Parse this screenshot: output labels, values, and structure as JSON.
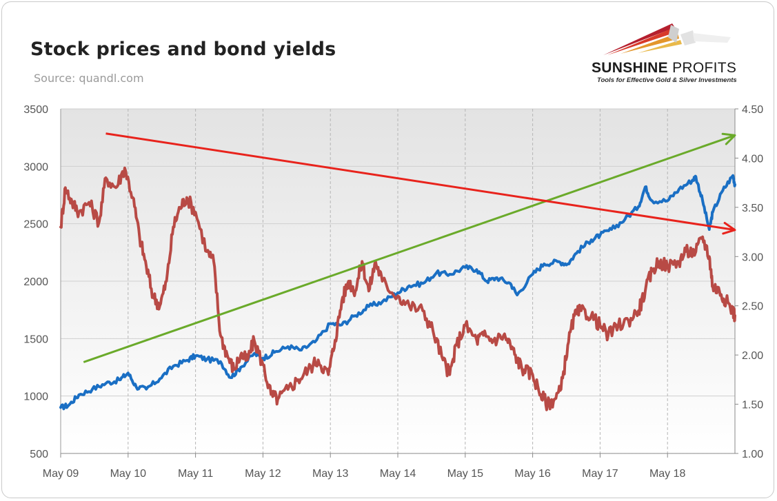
{
  "header": {
    "title": "Stock prices and bond yields",
    "source": "Source: quandl.com"
  },
  "logo": {
    "brand_bold": "SUNSHINE",
    "brand_light": "PROFITS",
    "tagline": "Tools for Effective Gold & Silver Investments"
  },
  "colors": {
    "stock_line": "#1a6fc4",
    "yield_line": "#b84a45",
    "rising_trend": "#6aaa2a",
    "falling_trend": "#e8231c"
  },
  "chart_data": {
    "type": "line",
    "title": "Stock prices and bond yields",
    "x_ticks": [
      "May 09",
      "May 10",
      "May 11",
      "May 12",
      "May 13",
      "May 14",
      "May 15",
      "May 16",
      "May 17",
      "May 18"
    ],
    "x_range": [
      2009.33,
      2019.33
    ],
    "y_left": {
      "range": [
        500,
        3500
      ],
      "ticks": [
        500,
        1000,
        1500,
        2000,
        2500,
        3000,
        3500
      ]
    },
    "y_right": {
      "range": [
        1.0,
        4.5
      ],
      "ticks": [
        "1.00",
        "1.50",
        "2.00",
        "2.50",
        "3.00",
        "3.50",
        "4.00",
        "4.50"
      ]
    },
    "grid": true,
    "legend": "none",
    "series": [
      {
        "axis": "left",
        "color": "#1a6fc4",
        "points": [
          [
            2009.33,
            900
          ],
          [
            2009.45,
            920
          ],
          [
            2009.6,
            1010
          ],
          [
            2009.8,
            1060
          ],
          [
            2010.0,
            1110
          ],
          [
            2010.2,
            1140
          ],
          [
            2010.33,
            1200
          ],
          [
            2010.45,
            1080
          ],
          [
            2010.6,
            1060
          ],
          [
            2010.8,
            1150
          ],
          [
            2011.0,
            1260
          ],
          [
            2011.2,
            1310
          ],
          [
            2011.33,
            1350
          ],
          [
            2011.5,
            1320
          ],
          [
            2011.7,
            1300
          ],
          [
            2011.85,
            1160
          ],
          [
            2012.0,
            1250
          ],
          [
            2012.2,
            1370
          ],
          [
            2012.33,
            1330
          ],
          [
            2012.5,
            1380
          ],
          [
            2012.7,
            1430
          ],
          [
            2012.9,
            1400
          ],
          [
            2013.1,
            1470
          ],
          [
            2013.33,
            1630
          ],
          [
            2013.5,
            1620
          ],
          [
            2013.7,
            1700
          ],
          [
            2013.9,
            1780
          ],
          [
            2014.1,
            1820
          ],
          [
            2014.33,
            1900
          ],
          [
            2014.5,
            1960
          ],
          [
            2014.7,
            1980
          ],
          [
            2014.9,
            2070
          ],
          [
            2015.1,
            2060
          ],
          [
            2015.33,
            2120
          ],
          [
            2015.5,
            2100
          ],
          [
            2015.65,
            2000
          ],
          [
            2015.8,
            2030
          ],
          [
            2016.0,
            1980
          ],
          [
            2016.1,
            1880
          ],
          [
            2016.33,
            2060
          ],
          [
            2016.5,
            2150
          ],
          [
            2016.7,
            2170
          ],
          [
            2016.85,
            2150
          ],
          [
            2017.0,
            2260
          ],
          [
            2017.2,
            2360
          ],
          [
            2017.33,
            2400
          ],
          [
            2017.5,
            2450
          ],
          [
            2017.7,
            2540
          ],
          [
            2017.9,
            2650
          ],
          [
            2018.0,
            2820
          ],
          [
            2018.1,
            2700
          ],
          [
            2018.33,
            2700
          ],
          [
            2018.5,
            2800
          ],
          [
            2018.7,
            2880
          ],
          [
            2018.75,
            2910
          ],
          [
            2018.85,
            2700
          ],
          [
            2018.95,
            2450
          ],
          [
            2019.0,
            2600
          ],
          [
            2019.15,
            2790
          ],
          [
            2019.3,
            2920
          ],
          [
            2019.33,
            2840
          ]
        ]
      },
      {
        "axis": "right",
        "color": "#b84a45",
        "points": [
          [
            2009.33,
            3.3
          ],
          [
            2009.4,
            3.7
          ],
          [
            2009.5,
            3.55
          ],
          [
            2009.6,
            3.45
          ],
          [
            2009.75,
            3.55
          ],
          [
            2009.9,
            3.35
          ],
          [
            2010.0,
            3.8
          ],
          [
            2010.15,
            3.7
          ],
          [
            2010.28,
            3.9
          ],
          [
            2010.4,
            3.6
          ],
          [
            2010.5,
            3.2
          ],
          [
            2010.6,
            2.9
          ],
          [
            2010.7,
            2.6
          ],
          [
            2010.8,
            2.5
          ],
          [
            2010.9,
            2.75
          ],
          [
            2011.0,
            3.3
          ],
          [
            2011.1,
            3.5
          ],
          [
            2011.2,
            3.6
          ],
          [
            2011.33,
            3.45
          ],
          [
            2011.5,
            3.05
          ],
          [
            2011.6,
            2.95
          ],
          [
            2011.7,
            2.2
          ],
          [
            2011.8,
            2.0
          ],
          [
            2011.9,
            1.85
          ],
          [
            2012.0,
            2.0
          ],
          [
            2012.1,
            1.95
          ],
          [
            2012.2,
            2.15
          ],
          [
            2012.33,
            1.9
          ],
          [
            2012.45,
            1.6
          ],
          [
            2012.55,
            1.55
          ],
          [
            2012.7,
            1.65
          ],
          [
            2012.85,
            1.75
          ],
          [
            2013.0,
            1.85
          ],
          [
            2013.15,
            1.95
          ],
          [
            2013.3,
            1.8
          ],
          [
            2013.4,
            2.15
          ],
          [
            2013.5,
            2.55
          ],
          [
            2013.6,
            2.75
          ],
          [
            2013.7,
            2.65
          ],
          [
            2013.8,
            2.95
          ],
          [
            2013.9,
            2.65
          ],
          [
            2014.0,
            2.95
          ],
          [
            2014.1,
            2.75
          ],
          [
            2014.33,
            2.6
          ],
          [
            2014.5,
            2.5
          ],
          [
            2014.7,
            2.45
          ],
          [
            2014.85,
            2.25
          ],
          [
            2015.0,
            1.95
          ],
          [
            2015.1,
            1.8
          ],
          [
            2015.2,
            2.1
          ],
          [
            2015.33,
            2.3
          ],
          [
            2015.5,
            2.15
          ],
          [
            2015.6,
            2.2
          ],
          [
            2015.75,
            2.15
          ],
          [
            2015.9,
            2.2
          ],
          [
            2016.0,
            2.1
          ],
          [
            2016.1,
            1.95
          ],
          [
            2016.2,
            1.85
          ],
          [
            2016.33,
            1.8
          ],
          [
            2016.45,
            1.6
          ],
          [
            2016.55,
            1.5
          ],
          [
            2016.65,
            1.55
          ],
          [
            2016.75,
            1.65
          ],
          [
            2016.85,
            2.1
          ],
          [
            2016.95,
            2.4
          ],
          [
            2017.05,
            2.45
          ],
          [
            2017.2,
            2.4
          ],
          [
            2017.33,
            2.3
          ],
          [
            2017.45,
            2.2
          ],
          [
            2017.6,
            2.3
          ],
          [
            2017.75,
            2.35
          ],
          [
            2017.9,
            2.45
          ],
          [
            2018.0,
            2.65
          ],
          [
            2018.1,
            2.85
          ],
          [
            2018.2,
            2.95
          ],
          [
            2018.33,
            2.9
          ],
          [
            2018.5,
            2.95
          ],
          [
            2018.6,
            3.05
          ],
          [
            2018.75,
            3.05
          ],
          [
            2018.85,
            3.2
          ],
          [
            2018.95,
            3.0
          ],
          [
            2019.0,
            2.7
          ],
          [
            2019.1,
            2.65
          ],
          [
            2019.2,
            2.55
          ],
          [
            2019.3,
            2.45
          ],
          [
            2019.33,
            2.4
          ]
        ]
      }
    ],
    "annotations": [
      {
        "type": "arrow",
        "color": "#6aaa2a",
        "from": [
          2009.67,
          1295
        ],
        "to": [
          2019.33,
          3270
        ]
      },
      {
        "type": "arrow",
        "color": "#e8231c",
        "from": [
          2010.0,
          4.25
        ],
        "to": [
          2019.33,
          3.27
        ]
      }
    ]
  }
}
